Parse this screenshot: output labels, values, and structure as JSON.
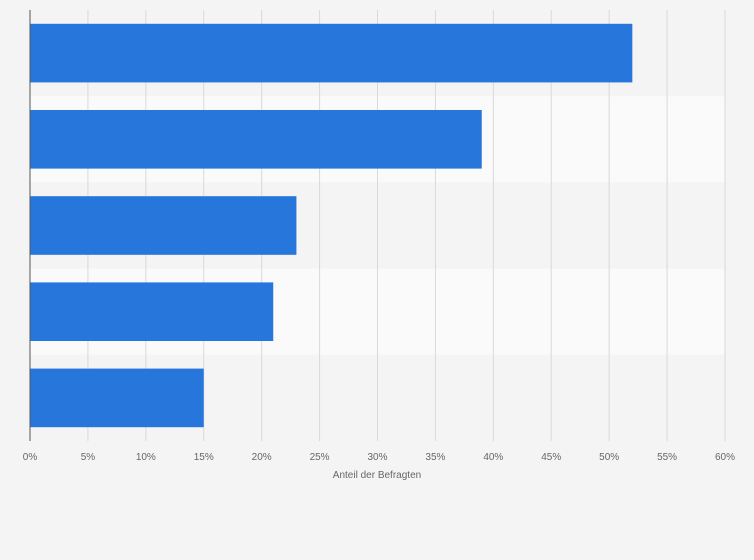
{
  "chart_data": {
    "type": "bar",
    "orientation": "horizontal",
    "categories": [
      "",
      "",
      "",
      "",
      ""
    ],
    "values": [
      52,
      39,
      23,
      21,
      15
    ],
    "title": "",
    "xlabel": "Anteil der Befragten",
    "ylabel": "",
    "xlim": [
      0,
      60
    ],
    "ticks": [
      0,
      5,
      10,
      15,
      20,
      25,
      30,
      35,
      40,
      45,
      50,
      55,
      60
    ],
    "tick_suffix": "%",
    "grid": true,
    "bar_color": "#2776dc"
  }
}
